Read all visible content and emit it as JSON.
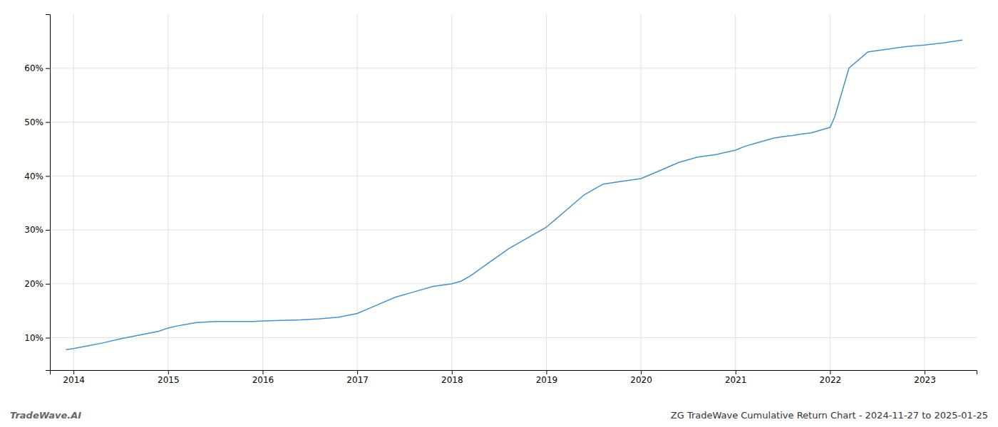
{
  "chart_data": {
    "type": "line",
    "title": "ZG TradeWave Cumulative Return Chart - 2024-11-27 to 2025-01-25",
    "annotations": [
      "TradeWave.AI"
    ],
    "color": "#4a90c4",
    "x": [
      2013.92,
      2014.0,
      2014.15,
      2014.3,
      2014.5,
      2014.7,
      2014.9,
      2015.0,
      2015.1,
      2015.3,
      2015.5,
      2015.7,
      2015.9,
      2016.0,
      2016.2,
      2016.4,
      2016.6,
      2016.8,
      2017.0,
      2017.2,
      2017.4,
      2017.6,
      2017.8,
      2018.0,
      2018.1,
      2018.2,
      2018.4,
      2018.6,
      2018.8,
      2019.0,
      2019.1,
      2019.2,
      2019.4,
      2019.6,
      2019.8,
      2020.0,
      2020.2,
      2020.4,
      2020.6,
      2020.8,
      2021.0,
      2021.1,
      2021.2,
      2021.3,
      2021.4,
      2021.5,
      2021.6,
      2021.7,
      2021.8,
      2022.0,
      2022.05,
      2022.1,
      2022.2,
      2022.4,
      2022.6,
      2022.8,
      2023.0,
      2023.2,
      2023.4
    ],
    "values": [
      7.8,
      8.0,
      8.5,
      9.0,
      9.8,
      10.5,
      11.2,
      11.8,
      12.2,
      12.8,
      13.0,
      13.0,
      13.0,
      13.1,
      13.2,
      13.3,
      13.5,
      13.8,
      14.5,
      16.0,
      17.5,
      18.5,
      19.5,
      20.0,
      20.5,
      21.5,
      24.0,
      26.5,
      28.5,
      30.5,
      32.0,
      33.5,
      36.5,
      38.5,
      39.0,
      39.5,
      41.0,
      42.5,
      43.5,
      44.0,
      44.8,
      45.5,
      46.0,
      46.5,
      47.0,
      47.3,
      47.5,
      47.8,
      48.0,
      49.0,
      51.0,
      54.0,
      60.0,
      63.0,
      63.5,
      64.0,
      64.3,
      64.7,
      65.2
    ],
    "xlim": [
      2013.75,
      2023.55
    ],
    "ylim": [
      4.0,
      70.0
    ],
    "xticks": [
      2014,
      2015,
      2016,
      2017,
      2018,
      2019,
      2020,
      2021,
      2022,
      2023
    ],
    "yticks": [
      {
        "value": 10,
        "label": "10%"
      },
      {
        "value": 20,
        "label": "20%"
      },
      {
        "value": 30,
        "label": "30%"
      },
      {
        "value": 40,
        "label": "40%"
      },
      {
        "value": 50,
        "label": "50%"
      },
      {
        "value": 60,
        "label": "60%"
      }
    ],
    "grid": true
  }
}
